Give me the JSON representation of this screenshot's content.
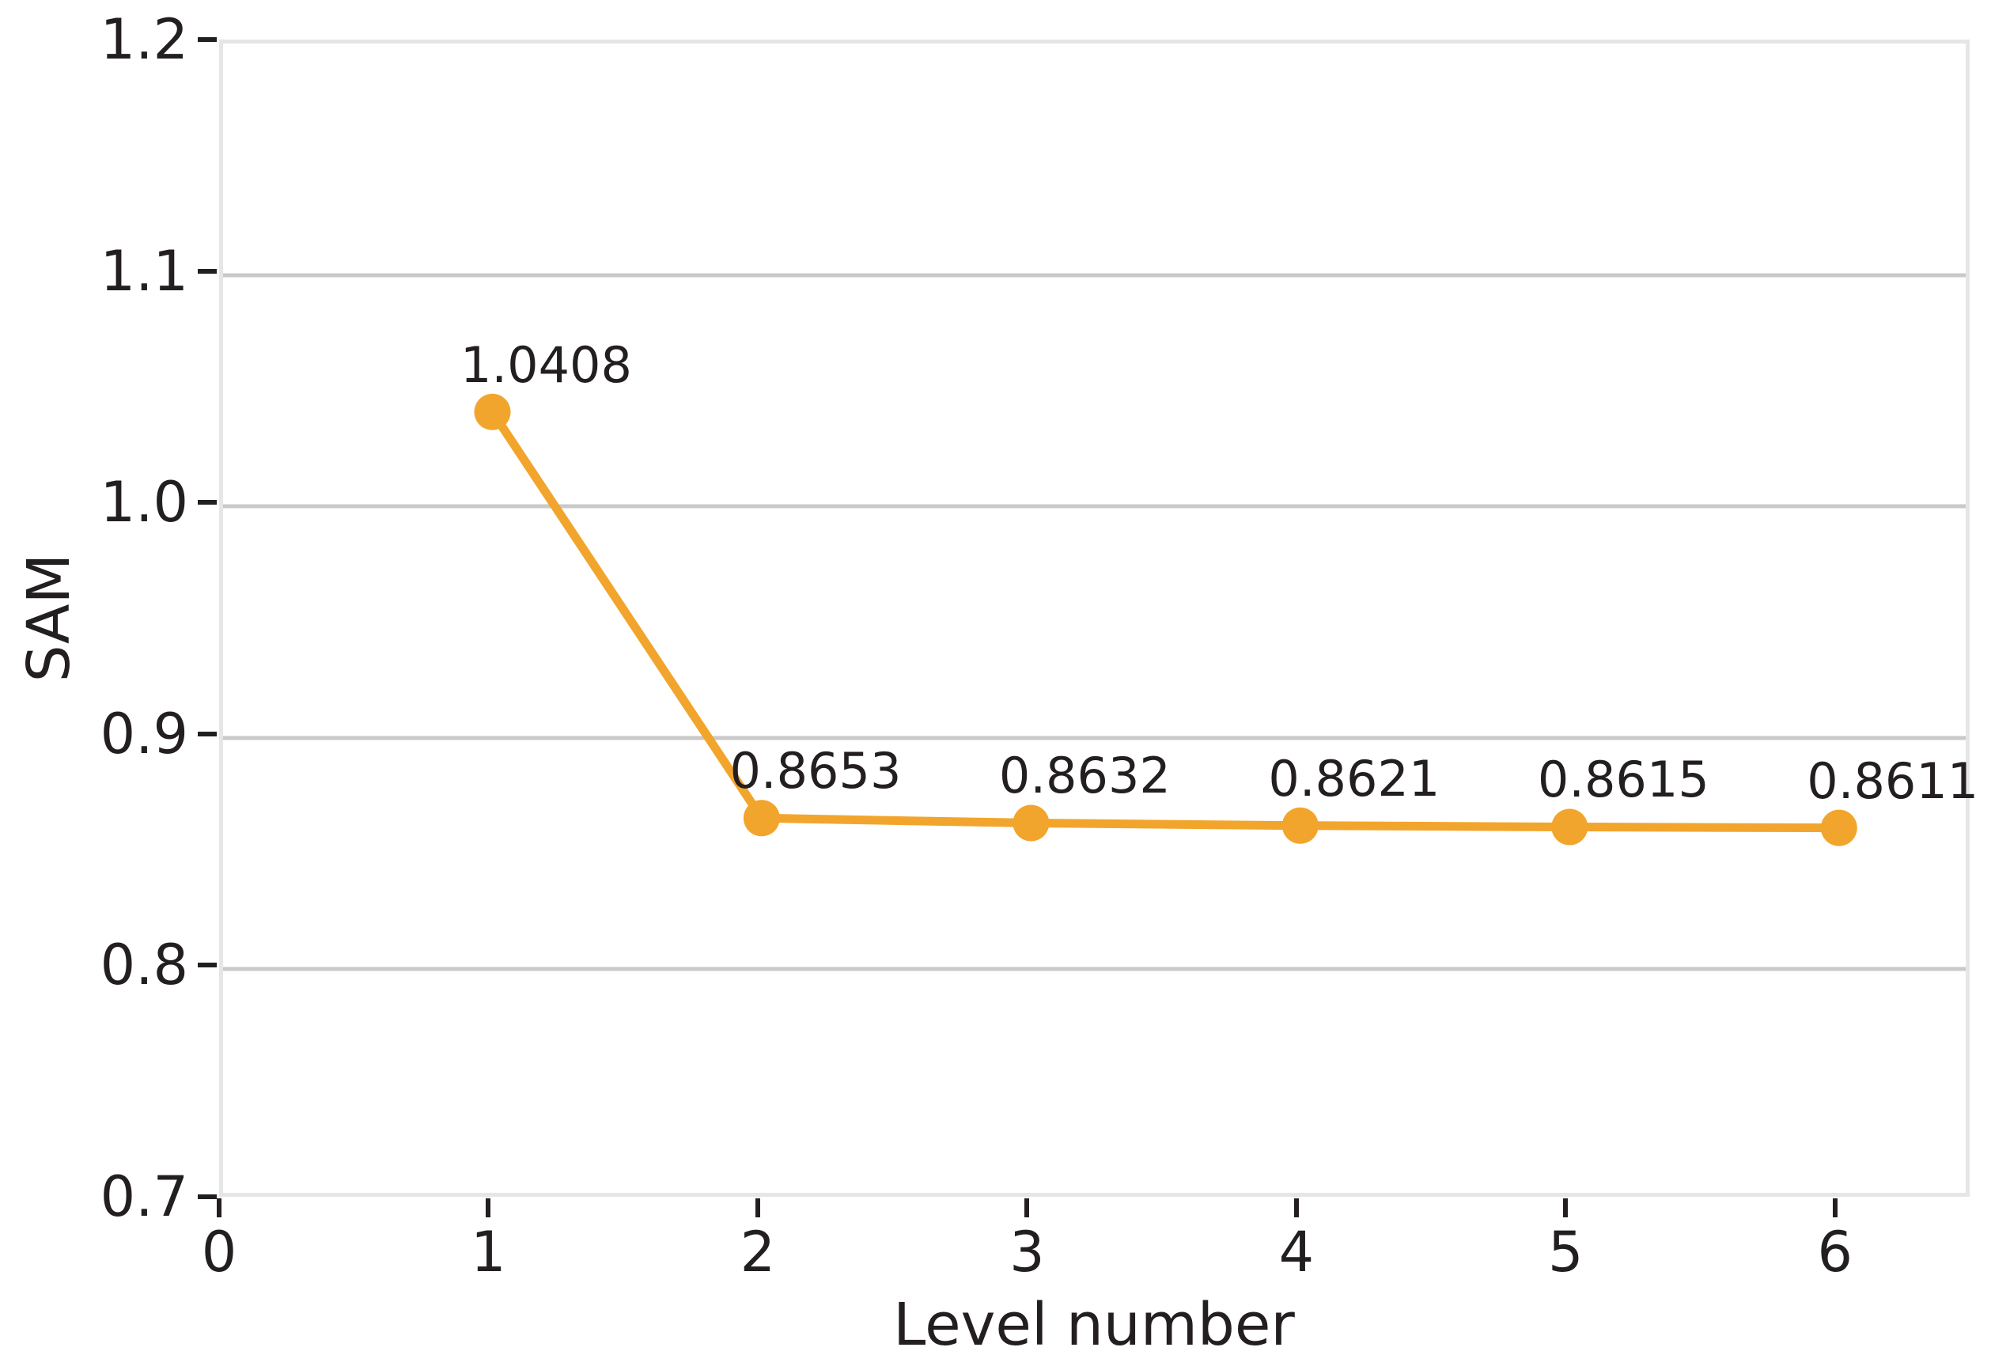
{
  "chart_data": {
    "type": "line",
    "x": [
      1,
      2,
      3,
      4,
      5,
      6
    ],
    "values": [
      1.0408,
      0.8653,
      0.8632,
      0.8621,
      0.8615,
      0.8611
    ],
    "point_labels": [
      "1.0408",
      "0.8653",
      "0.8632",
      "0.8621",
      "0.8615",
      "0.8611"
    ],
    "title": "",
    "xlabel": "Level number",
    "ylabel": "SAM",
    "xlim": [
      0,
      6.5
    ],
    "ylim": [
      0.7,
      1.2
    ],
    "xticks": [
      0,
      1,
      2,
      3,
      4,
      5,
      6
    ],
    "xtick_labels": [
      "0",
      "1",
      "2",
      "3",
      "4",
      "5",
      "6"
    ],
    "yticks": [
      0.7,
      0.8,
      0.9,
      1.0,
      1.1,
      1.2
    ],
    "ytick_labels": [
      "0.7",
      "0.8",
      "0.9",
      "1.0",
      "1.1",
      "1.2"
    ],
    "grid": "horizontal-only",
    "legend": "none",
    "colors": {
      "line": "#f2a52c",
      "marker": "#f2a52c",
      "text": "#231f20",
      "gridline": "#c9c9c9",
      "spine": "#e6e6e6",
      "background": "#ffffff"
    }
  }
}
